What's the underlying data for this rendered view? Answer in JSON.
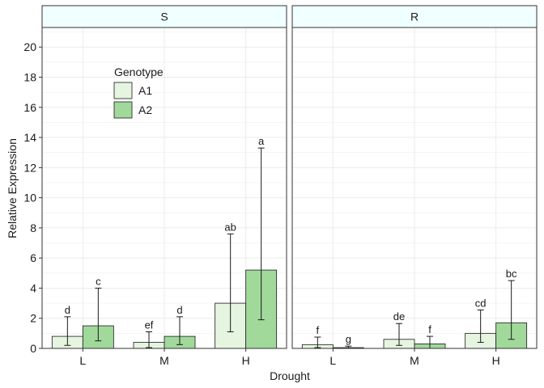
{
  "chart_data": {
    "type": "bar",
    "xlabel": "Drought",
    "ylabel": "Relative Expression",
    "ylim": [
      0,
      21.3
    ],
    "yticks": [
      0,
      2,
      4,
      6,
      8,
      10,
      12,
      14,
      16,
      18,
      20
    ],
    "categories": [
      "L",
      "M",
      "H"
    ],
    "grid": true,
    "legend": {
      "title": "Genotype",
      "placement": "top-left inside first panel",
      "entries": [
        "A1",
        "A2"
      ]
    },
    "colors": {
      "A1": "#e5f5e0",
      "A2": "#a1d99b",
      "strip_fill": "#f0ffff",
      "grid": "#ebebeb"
    },
    "panels": [
      {
        "name": "S",
        "series": [
          {
            "name": "A1",
            "values": [
              0.8,
              0.4,
              3.0
            ],
            "error_low": [
              0.2,
              0.05,
              1.1
            ],
            "error_high": [
              2.1,
              1.1,
              7.6
            ],
            "labels": [
              "d",
              "ef",
              "ab"
            ]
          },
          {
            "name": "A2",
            "values": [
              1.5,
              0.8,
              5.2
            ],
            "error_low": [
              0.5,
              0.25,
              1.9
            ],
            "error_high": [
              4.0,
              2.1,
              13.3
            ],
            "labels": [
              "c",
              "d",
              "a"
            ]
          }
        ]
      },
      {
        "name": "R",
        "series": [
          {
            "name": "A1",
            "values": [
              0.25,
              0.6,
              1.0
            ],
            "error_low": [
              0.05,
              0.2,
              0.4
            ],
            "error_high": [
              0.75,
              1.65,
              2.55
            ],
            "labels": [
              "f",
              "de",
              "cd"
            ]
          },
          {
            "name": "A2",
            "values": [
              0.05,
              0.3,
              1.7
            ],
            "error_low": [
              0.0,
              0.0,
              0.6
            ],
            "error_high": [
              0.15,
              0.8,
              4.5
            ],
            "labels": [
              "g",
              "f",
              "bc"
            ]
          }
        ]
      }
    ]
  }
}
